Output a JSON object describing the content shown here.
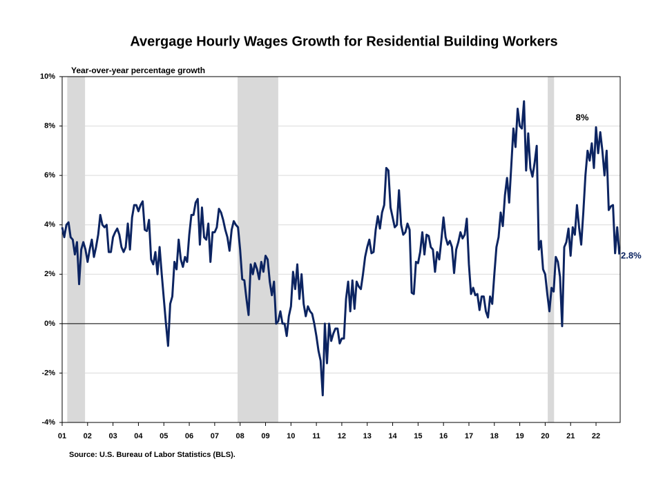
{
  "chart_data": {
    "type": "line",
    "title": "Avergage Hourly Wages Growth for Residential Building Workers",
    "y_axis_label": "Year-over-year percentage growth",
    "source": "Source: U.S. Bureau of Labor Statistics (BLS).",
    "annotations": [
      "8%",
      "2.8%"
    ],
    "shaded_ranges": [
      [
        2001.2,
        2001.9
      ],
      [
        2007.9,
        2009.5
      ],
      [
        2020.1,
        2020.35
      ]
    ],
    "shade_color": "#d9d9d9",
    "grid": true,
    "xlim": [
      2001,
      2022.95
    ],
    "ylim": [
      -4,
      10
    ],
    "xticks": [
      {
        "value": 2001,
        "label": "01"
      },
      {
        "value": 2002,
        "label": "02"
      },
      {
        "value": 2003,
        "label": "03"
      },
      {
        "value": 2004,
        "label": "04"
      },
      {
        "value": 2005,
        "label": "05"
      },
      {
        "value": 2006,
        "label": "06"
      },
      {
        "value": 2007,
        "label": "07"
      },
      {
        "value": 2008,
        "label": "08"
      },
      {
        "value": 2009,
        "label": "09"
      },
      {
        "value": 2010,
        "label": "10"
      },
      {
        "value": 2011,
        "label": "11"
      },
      {
        "value": 2012,
        "label": "12"
      },
      {
        "value": 2013,
        "label": "13"
      },
      {
        "value": 2014,
        "label": "14"
      },
      {
        "value": 2015,
        "label": "15"
      },
      {
        "value": 2016,
        "label": "16"
      },
      {
        "value": 2017,
        "label": "17"
      },
      {
        "value": 2018,
        "label": "18"
      },
      {
        "value": 2019,
        "label": "19"
      },
      {
        "value": 2020,
        "label": "20"
      },
      {
        "value": 2021,
        "label": "21"
      },
      {
        "value": 2022,
        "label": "22"
      }
    ],
    "yticks": [
      {
        "value": -4,
        "label": "-4%"
      },
      {
        "value": -2,
        "label": "-2%"
      },
      {
        "value": 0,
        "label": "0%"
      },
      {
        "value": 2,
        "label": "2%"
      },
      {
        "value": 4,
        "label": "4%"
      },
      {
        "value": 6,
        "label": "6%"
      },
      {
        "value": 8,
        "label": "8%"
      },
      {
        "value": 10,
        "label": "10%"
      }
    ],
    "series": [
      {
        "color": "#0c2461",
        "x": [
          2001,
          2001.083,
          2001.167,
          2001.25,
          2001.333,
          2001.417,
          2001.5,
          2001.583,
          2001.667,
          2001.75,
          2001.833,
          2001.917,
          2002,
          2002.083,
          2002.167,
          2002.25,
          2002.333,
          2002.417,
          2002.5,
          2002.583,
          2002.667,
          2002.75,
          2002.833,
          2002.917,
          2003,
          2003.083,
          2003.167,
          2003.25,
          2003.333,
          2003.417,
          2003.5,
          2003.583,
          2003.667,
          2003.75,
          2003.833,
          2003.917,
          2004,
          2004.083,
          2004.167,
          2004.25,
          2004.333,
          2004.417,
          2004.5,
          2004.583,
          2004.667,
          2004.75,
          2004.833,
          2004.917,
          2005,
          2005.083,
          2005.167,
          2005.25,
          2005.333,
          2005.417,
          2005.5,
          2005.583,
          2005.667,
          2005.75,
          2005.833,
          2005.917,
          2006,
          2006.083,
          2006.167,
          2006.25,
          2006.333,
          2006.417,
          2006.5,
          2006.583,
          2006.667,
          2006.75,
          2006.833,
          2006.917,
          2007,
          2007.083,
          2007.167,
          2007.25,
          2007.333,
          2007.417,
          2007.5,
          2007.583,
          2007.667,
          2007.75,
          2007.833,
          2007.917,
          2008,
          2008.083,
          2008.167,
          2008.25,
          2008.333,
          2008.417,
          2008.5,
          2008.583,
          2008.667,
          2008.75,
          2008.833,
          2008.917,
          2009,
          2009.083,
          2009.167,
          2009.25,
          2009.333,
          2009.417,
          2009.5,
          2009.583,
          2009.667,
          2009.75,
          2009.833,
          2009.917,
          2010,
          2010.083,
          2010.167,
          2010.25,
          2010.333,
          2010.417,
          2010.5,
          2010.583,
          2010.667,
          2010.75,
          2010.833,
          2010.917,
          2011,
          2011.083,
          2011.167,
          2011.25,
          2011.333,
          2011.417,
          2011.5,
          2011.583,
          2011.667,
          2011.75,
          2011.833,
          2011.917,
          2012,
          2012.083,
          2012.167,
          2012.25,
          2012.333,
          2012.417,
          2012.5,
          2012.583,
          2012.667,
          2012.75,
          2012.833,
          2012.917,
          2013,
          2013.083,
          2013.167,
          2013.25,
          2013.333,
          2013.417,
          2013.5,
          2013.583,
          2013.667,
          2013.75,
          2013.833,
          2013.917,
          2014,
          2014.083,
          2014.167,
          2014.25,
          2014.333,
          2014.417,
          2014.5,
          2014.583,
          2014.667,
          2014.75,
          2014.833,
          2014.917,
          2015,
          2015.083,
          2015.167,
          2015.25,
          2015.333,
          2015.417,
          2015.5,
          2015.583,
          2015.667,
          2015.75,
          2015.833,
          2015.917,
          2016,
          2016.083,
          2016.167,
          2016.25,
          2016.333,
          2016.417,
          2016.5,
          2016.583,
          2016.667,
          2016.75,
          2016.833,
          2016.917,
          2017,
          2017.083,
          2017.167,
          2017.25,
          2017.333,
          2017.417,
          2017.5,
          2017.583,
          2017.667,
          2017.75,
          2017.833,
          2017.917,
          2018,
          2018.083,
          2018.167,
          2018.25,
          2018.333,
          2018.417,
          2018.5,
          2018.583,
          2018.667,
          2018.75,
          2018.833,
          2018.917,
          2019,
          2019.083,
          2019.167,
          2019.25,
          2019.333,
          2019.417,
          2019.5,
          2019.583,
          2019.667,
          2019.75,
          2019.833,
          2019.917,
          2020,
          2020.083,
          2020.167,
          2020.25,
          2020.333,
          2020.417,
          2020.5,
          2020.583,
          2020.667,
          2020.75,
          2020.833,
          2020.917,
          2021,
          2021.083,
          2021.167,
          2021.25,
          2021.333,
          2021.417,
          2021.5,
          2021.583,
          2021.667,
          2021.75,
          2021.833,
          2021.917,
          2022,
          2022.083,
          2022.167,
          2022.25,
          2022.333,
          2022.417,
          2022.5,
          2022.583,
          2022.667,
          2022.75,
          2022.833,
          2022.917
        ],
        "values": [
          3.9,
          3.5,
          4.0,
          4.1,
          3.5,
          3.4,
          2.8,
          3.3,
          1.6,
          3.0,
          3.3,
          3.0,
          2.5,
          3.0,
          3.4,
          2.7,
          3.1,
          3.6,
          4.4,
          4.0,
          3.9,
          4.0,
          2.9,
          2.9,
          3.5,
          3.7,
          3.85,
          3.6,
          3.1,
          2.9,
          3.1,
          4.05,
          3.0,
          4.3,
          4.8,
          4.8,
          4.55,
          4.8,
          4.95,
          3.8,
          3.75,
          4.2,
          2.6,
          2.4,
          2.9,
          2.0,
          3.1,
          2.0,
          1.0,
          0.0,
          -0.9,
          0.8,
          1.1,
          2.5,
          2.2,
          3.4,
          2.6,
          2.3,
          2.7,
          2.5,
          3.6,
          4.4,
          4.4,
          4.9,
          5.05,
          3.2,
          4.7,
          3.5,
          3.4,
          4.05,
          2.5,
          3.7,
          3.7,
          3.9,
          4.65,
          4.5,
          4.2,
          3.8,
          3.5,
          2.95,
          3.8,
          4.15,
          4.0,
          3.9,
          3.0,
          1.8,
          1.75,
          1.0,
          0.35,
          2.4,
          2.0,
          2.45,
          2.2,
          1.8,
          2.5,
          2.1,
          2.75,
          2.6,
          1.7,
          1.15,
          1.7,
          0.0,
          0.1,
          0.5,
          0.0,
          0.0,
          -0.5,
          0.3,
          0.7,
          2.1,
          1.4,
          2.4,
          1.0,
          2.0,
          0.8,
          0.3,
          0.7,
          0.5,
          0.4,
          0.0,
          -0.5,
          -1.1,
          -1.5,
          -2.9,
          0.0,
          -1.6,
          0.0,
          -0.7,
          -0.4,
          -0.2,
          -0.2,
          -0.8,
          -0.6,
          -0.6,
          1.0,
          1.7,
          0.5,
          1.75,
          0.6,
          1.7,
          1.5,
          1.4,
          2.0,
          2.7,
          3.1,
          3.4,
          2.85,
          2.9,
          3.8,
          4.35,
          3.85,
          4.5,
          4.8,
          6.3,
          6.2,
          4.7,
          4.3,
          3.9,
          4.0,
          5.4,
          4.0,
          3.6,
          3.7,
          4.05,
          3.8,
          1.25,
          1.2,
          2.5,
          2.45,
          2.9,
          3.7,
          2.8,
          3.6,
          3.55,
          3.1,
          3.0,
          2.1,
          2.9,
          2.6,
          3.4,
          4.3,
          3.5,
          3.2,
          3.35,
          3.1,
          2.05,
          3.0,
          3.3,
          3.7,
          3.45,
          3.6,
          4.25,
          2.4,
          1.2,
          1.45,
          1.15,
          1.2,
          0.55,
          1.1,
          1.1,
          0.5,
          0.25,
          1.1,
          0.8,
          2.0,
          3.1,
          3.5,
          4.5,
          3.95,
          5.2,
          5.9,
          4.9,
          6.4,
          7.9,
          7.15,
          8.7,
          8.0,
          7.9,
          9.0,
          6.2,
          7.7,
          6.3,
          5.95,
          6.5,
          7.2,
          3.0,
          3.35,
          2.2,
          2.0,
          1.2,
          0.5,
          1.45,
          1.3,
          2.7,
          2.5,
          1.9,
          -0.1,
          3.1,
          3.3,
          3.85,
          2.75,
          3.9,
          3.6,
          4.8,
          3.9,
          3.2,
          4.5,
          6.0,
          7.0,
          6.6,
          7.3,
          6.3,
          7.95,
          6.9,
          7.75,
          7.0,
          6.0,
          7.0,
          4.6,
          4.75,
          4.8,
          2.85,
          3.9,
          2.8
        ]
      }
    ]
  }
}
